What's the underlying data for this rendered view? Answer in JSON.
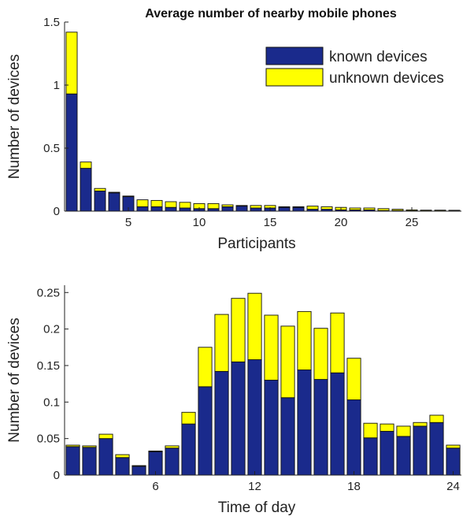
{
  "chart_data": [
    {
      "type": "bar",
      "stacked": true,
      "title": "Average number of nearby mobile phones",
      "xlabel": "Participants",
      "ylabel": "Number of devices",
      "xlim": [
        0.5,
        28.5
      ],
      "ylim": [
        0,
        1.5
      ],
      "xticks": [
        5,
        10,
        15,
        20,
        25
      ],
      "yticks": [
        0,
        0.5,
        1,
        1.5
      ],
      "ytick_labels": [
        "0",
        "0.5",
        "1",
        "1.5"
      ],
      "grid": false,
      "legend_position": "top-right",
      "x": [
        1,
        2,
        3,
        4,
        5,
        6,
        7,
        8,
        9,
        10,
        11,
        12,
        13,
        14,
        15,
        16,
        17,
        18,
        19,
        20,
        21,
        22,
        23,
        24,
        25,
        26,
        27,
        28
      ],
      "series": [
        {
          "name": "known devices",
          "color": "#1a2a8c",
          "values": [
            0.93,
            0.34,
            0.16,
            0.145,
            0.115,
            0.035,
            0.035,
            0.03,
            0.025,
            0.02,
            0.02,
            0.035,
            0.04,
            0.025,
            0.025,
            0.03,
            0.03,
            0.015,
            0.015,
            0.01,
            0.01,
            0.01,
            0.005,
            0.005,
            0.003,
            0.002,
            0.002,
            0.002
          ]
        },
        {
          "name": "unknown devices",
          "color": "#ffff00",
          "values": [
            0.49,
            0.05,
            0.02,
            0.005,
            0.005,
            0.055,
            0.05,
            0.045,
            0.045,
            0.04,
            0.04,
            0.015,
            0.005,
            0.02,
            0.02,
            0.005,
            0.005,
            0.025,
            0.02,
            0.02,
            0.015,
            0.015,
            0.015,
            0.01,
            0.007,
            0.006,
            0.006,
            0.005
          ]
        }
      ]
    },
    {
      "type": "bar",
      "stacked": true,
      "xlabel": "Time of day",
      "ylabel": "Number of devices",
      "xlim": [
        0.5,
        24.5
      ],
      "ylim": [
        0,
        0.26
      ],
      "xticks": [
        6,
        12,
        18,
        24
      ],
      "yticks": [
        0,
        0.05,
        0.1,
        0.15,
        0.2,
        0.25
      ],
      "ytick_labels": [
        "0",
        "0.05",
        "0.1",
        "0.15",
        "0.2",
        "0.25"
      ],
      "grid": false,
      "x": [
        1,
        2,
        3,
        4,
        5,
        6,
        7,
        8,
        9,
        10,
        11,
        12,
        13,
        14,
        15,
        16,
        17,
        18,
        19,
        20,
        21,
        22,
        23,
        24
      ],
      "series": [
        {
          "name": "known devices",
          "color": "#1a2a8c",
          "values": [
            0.039,
            0.038,
            0.05,
            0.024,
            0.012,
            0.032,
            0.037,
            0.07,
            0.121,
            0.142,
            0.155,
            0.158,
            0.13,
            0.106,
            0.144,
            0.131,
            0.14,
            0.103,
            0.051,
            0.06,
            0.053,
            0.067,
            0.072,
            0.037
          ]
        },
        {
          "name": "unknown devices",
          "color": "#ffff00",
          "values": [
            0.002,
            0.002,
            0.006,
            0.004,
            0.001,
            0.001,
            0.003,
            0.016,
            0.054,
            0.078,
            0.087,
            0.091,
            0.089,
            0.098,
            0.08,
            0.07,
            0.082,
            0.057,
            0.02,
            0.01,
            0.014,
            0.005,
            0.01,
            0.004
          ]
        }
      ]
    }
  ]
}
